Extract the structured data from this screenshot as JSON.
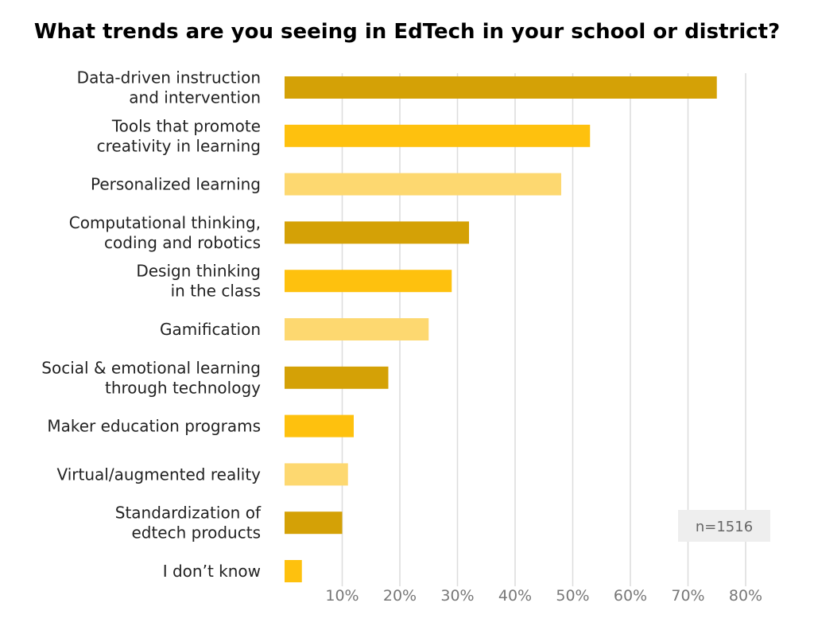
{
  "chart_data": {
    "type": "bar",
    "orientation": "horizontal",
    "title": "What trends are you seeing in EdTech in your school or district?",
    "categories": [
      [
        "Data-driven instruction",
        "and intervention"
      ],
      [
        "Tools that promote",
        "creativity in learning"
      ],
      [
        "Personalized learning"
      ],
      [
        "Computational thinking,",
        "coding and robotics"
      ],
      [
        "Design thinking",
        "in the class"
      ],
      [
        "Gamification"
      ],
      [
        "Social & emotional learning",
        "through technology"
      ],
      [
        "Maker education programs"
      ],
      [
        "Virtual/augmented reality"
      ],
      [
        "Standardization of",
        "edtech products"
      ],
      [
        "I don’t know"
      ]
    ],
    "values": [
      75,
      53,
      48,
      32,
      29,
      25,
      18,
      12,
      11,
      10,
      3
    ],
    "unit": "%",
    "xlim": [
      0,
      80
    ],
    "ticks": [
      10,
      20,
      30,
      40,
      50,
      60,
      70,
      80
    ],
    "tick_labels": [
      "10%",
      "20%",
      "30%",
      "40%",
      "50%",
      "60%",
      "70%",
      "80%"
    ],
    "grid": true,
    "colors": [
      "#D4A106",
      "#FEC10E",
      "#FDD870"
    ],
    "note": "n=1516",
    "note_position": "bottom-right",
    "xlabel": "",
    "ylabel": ""
  }
}
